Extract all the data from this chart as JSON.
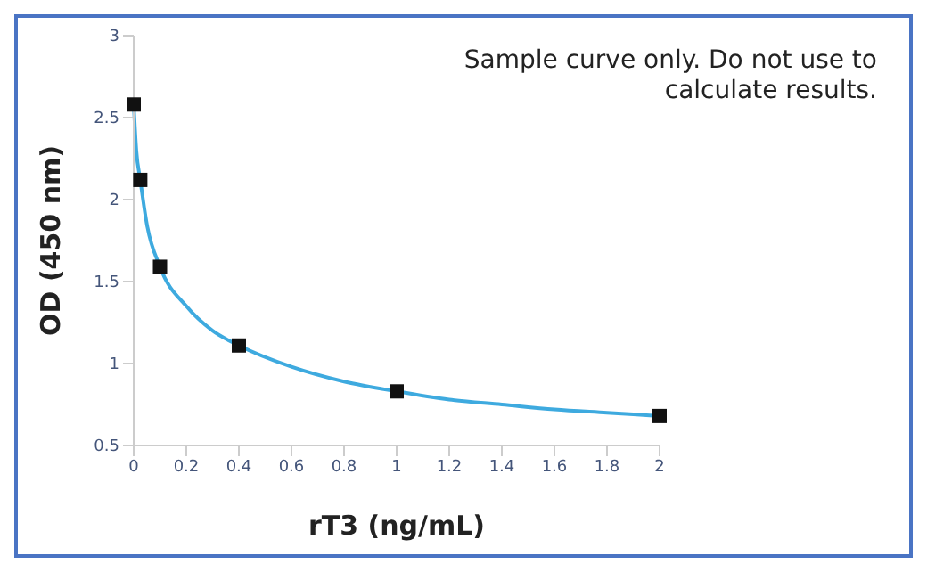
{
  "chart_data": {
    "type": "scatter",
    "xlabel": "rT3 (ng/mL)",
    "ylabel": "OD (450 nm)",
    "annotations": [
      "Sample curve only. Do not use to calculate results."
    ],
    "x": [
      0,
      0.025,
      0.1,
      0.4,
      1,
      2
    ],
    "series": [
      {
        "type": "line",
        "color": "#3eaadf",
        "marker": "none",
        "x": [
          0,
          0.01,
          0.025,
          0.05,
          0.1,
          0.2,
          0.3,
          0.4,
          0.6,
          0.8,
          1,
          1.2,
          1.4,
          1.6,
          1.8,
          2
        ],
        "values": [
          2.58,
          2.3,
          2.12,
          1.85,
          1.59,
          1.35,
          1.2,
          1.11,
          0.98,
          0.89,
          0.83,
          0.78,
          0.75,
          0.72,
          0.7,
          0.68
        ]
      },
      {
        "color": "#111111",
        "marker": "square",
        "values": [
          2.58,
          2.12,
          1.59,
          1.11,
          0.83,
          0.68
        ]
      }
    ],
    "xlim": [
      0,
      2
    ],
    "xticks": [
      0,
      0.2,
      0.4,
      0.6,
      0.8,
      1,
      1.2,
      1.4,
      1.6,
      1.8,
      2
    ],
    "ylim": [
      0.5,
      3
    ],
    "yticks": [
      0.5,
      1,
      1.5,
      2,
      2.5,
      3
    ],
    "grid": false
  }
}
